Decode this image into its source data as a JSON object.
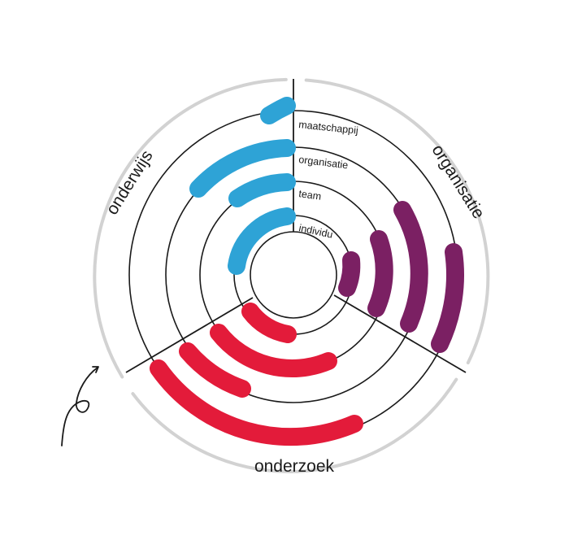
{
  "rings": [
    "maatschappij",
    "organisatie",
    "team",
    "individu"
  ],
  "domains": {
    "onderwijs": "onderwijs",
    "organisatie": "organisatie",
    "onderzoek": "onderzoek"
  },
  "colors": {
    "onderwijs": "#2ea3d6",
    "organisatie": "#7b2063",
    "onderzoek": "#e31b3a",
    "outer_ring": "#d2d2d2",
    "lines": "#1a1a1a"
  },
  "decoration": {
    "icon": "curly-arrow-icon"
  }
}
